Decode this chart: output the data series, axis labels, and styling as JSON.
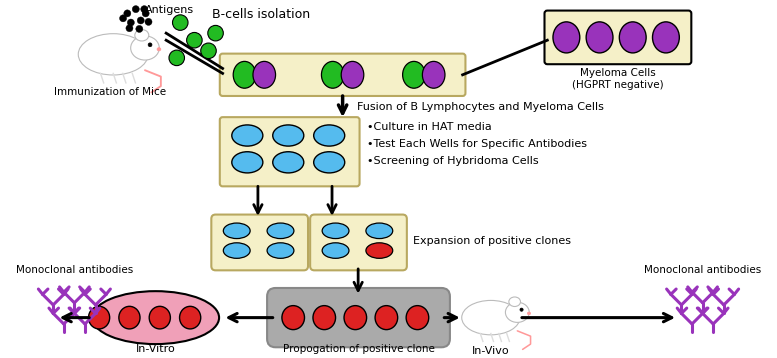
{
  "bg_color": "#ffffff",
  "tan_box_color": "#f5f0c8",
  "tan_box_edge": "#b8a860",
  "green_cell": "#22bb22",
  "purple_cell": "#9933bb",
  "blue_cell": "#55bbee",
  "red_cell": "#dd2222",
  "pink_fill": "#f0a0b8",
  "gray_fill": "#aaaaaa",
  "antibody_color": "#9933bb",
  "label_fusion": "Fusion of B Lymphocytes and Myeloma Cells",
  "label_hat": "•Culture in HAT media",
  "label_test": "•Test Each Wells for Specific Antibodies",
  "label_screen": "•Screening of Hybridoma Cells",
  "label_bcells": "B-cells isolation",
  "label_mouse_top": "Immunization of Mice",
  "label_antigens": "Antigens",
  "label_myeloma": "Myeloma Cells\n(HGPRT negative)",
  "label_expansion": "Expansion of positive clones",
  "label_propogation": "Propogation of positive clone",
  "label_invitro": "In-Vitro",
  "label_invivo": "In-Vivo",
  "label_mono_left": "Monoclonal antibodies",
  "label_mono_right": "Monoclonal antibodies"
}
